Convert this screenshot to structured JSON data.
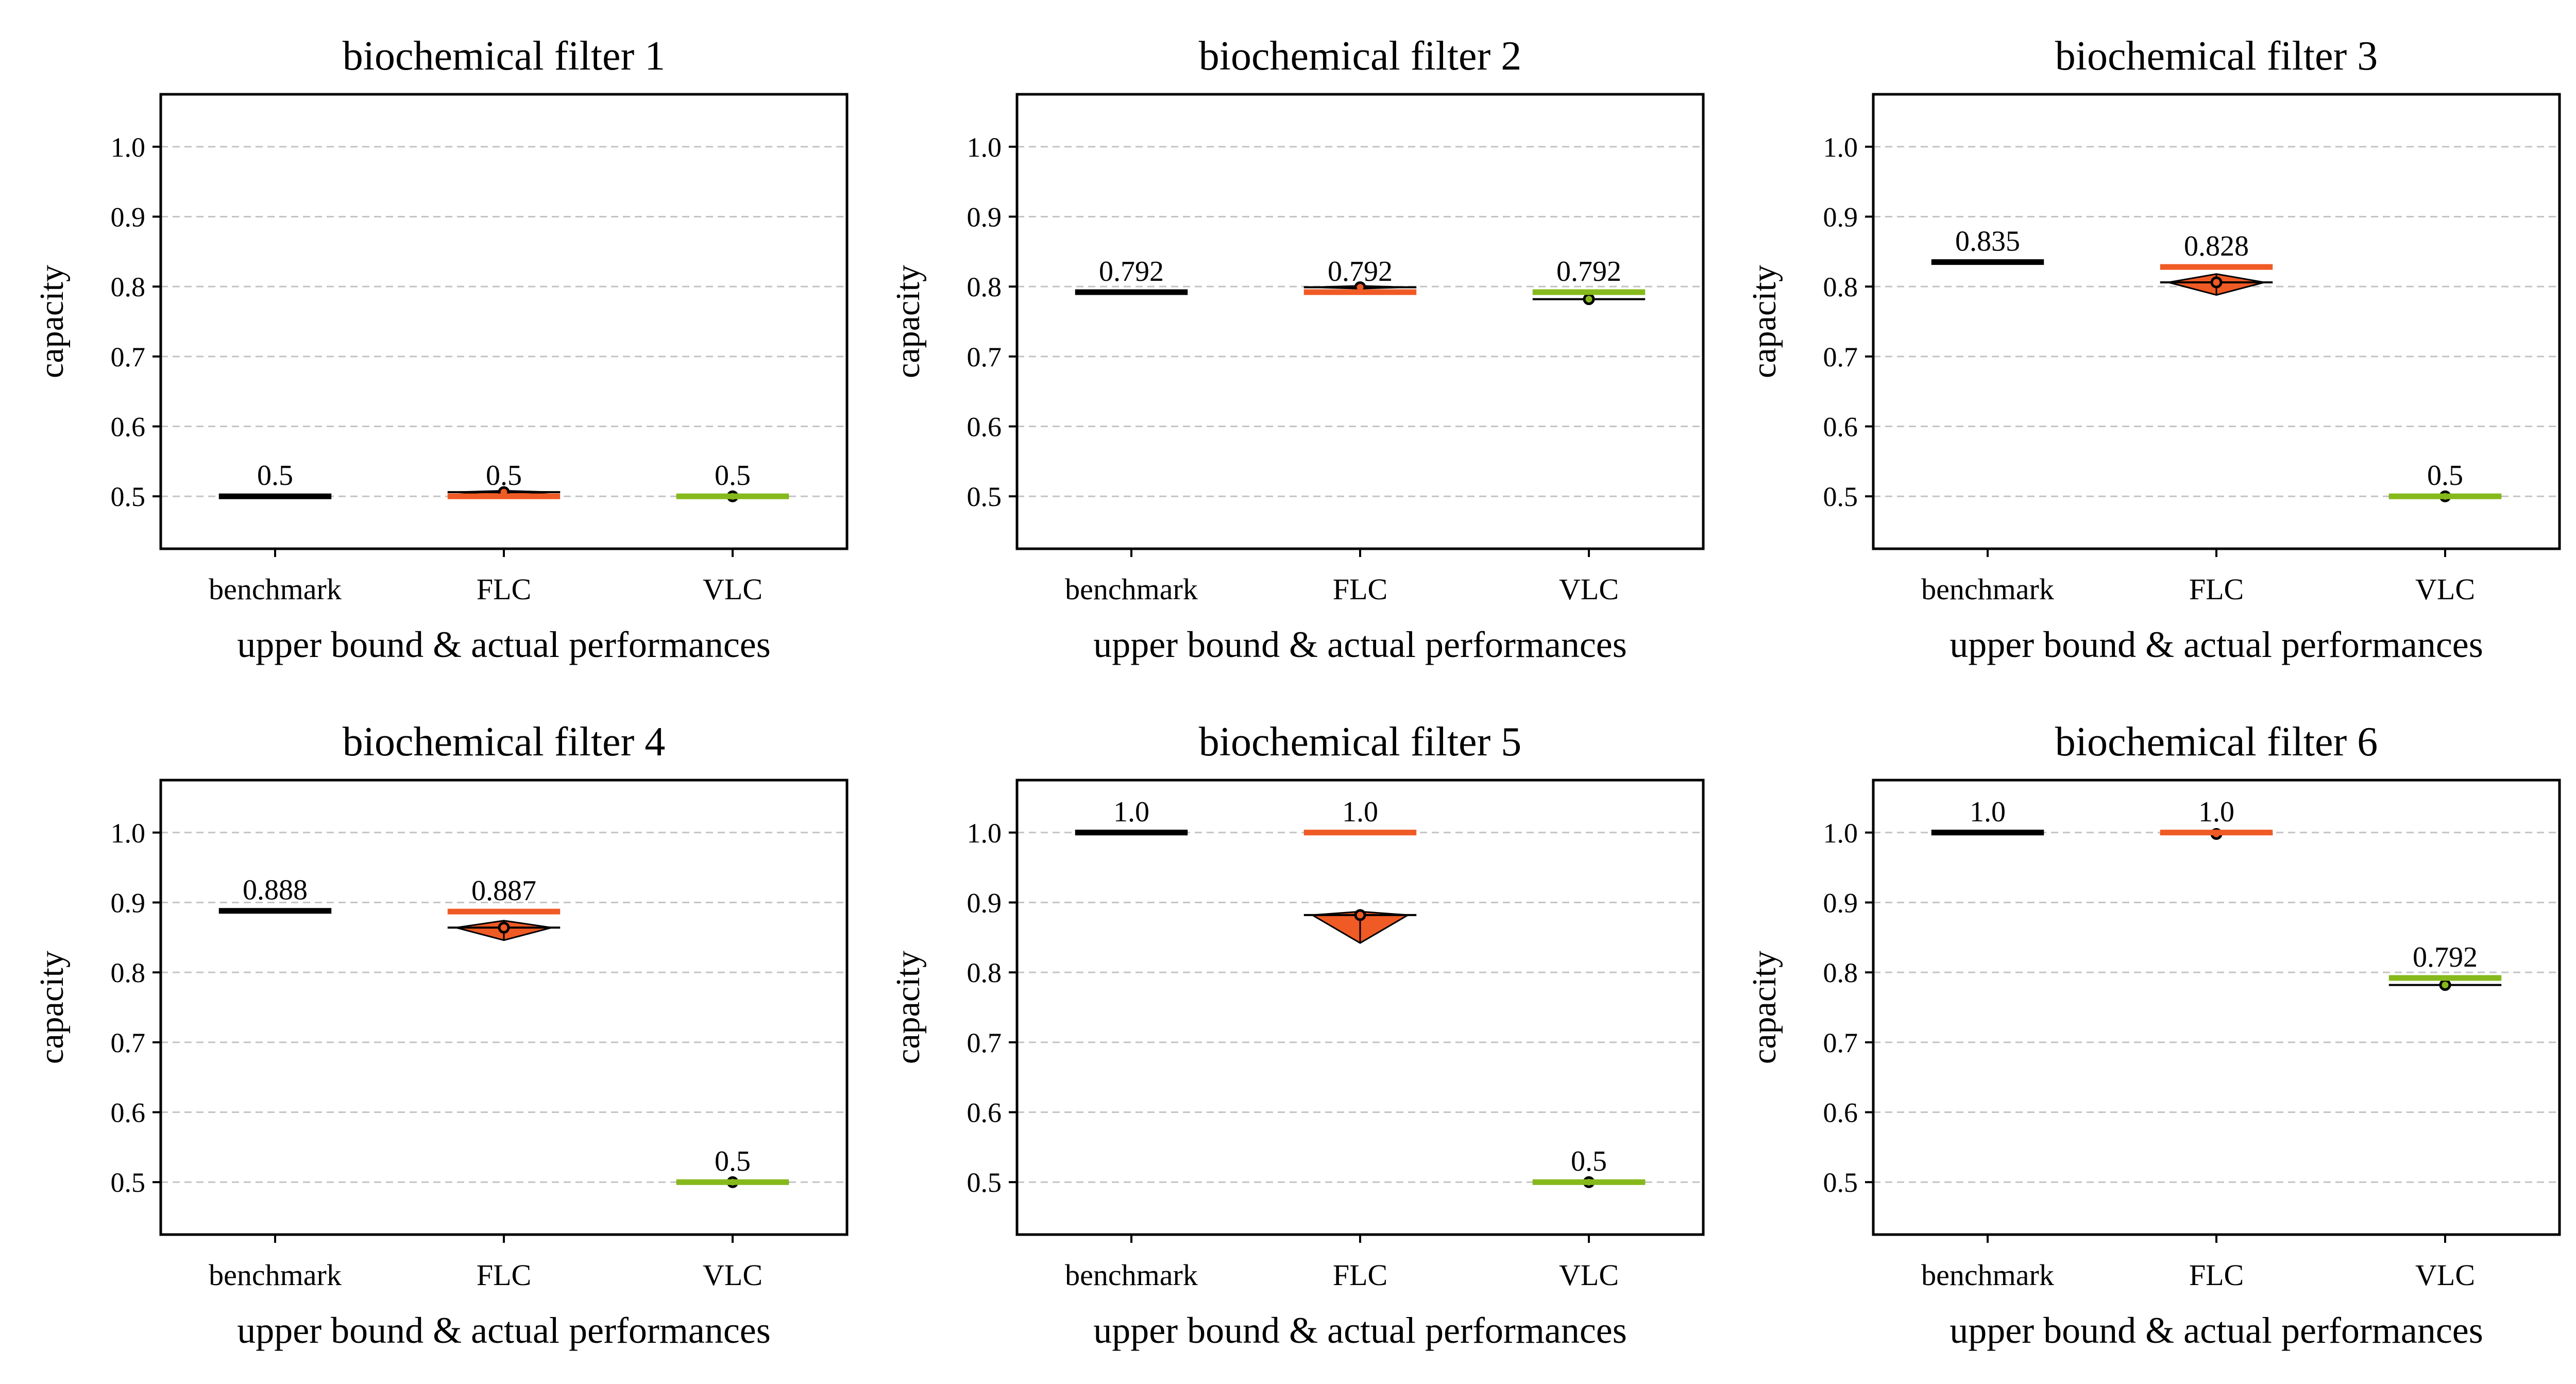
{
  "chart_data": [
    {
      "type": "box",
      "title": "biochemical filter 1",
      "xlabel": "upper bound & actual performances",
      "ylabel": "capacity",
      "categories": [
        "benchmark",
        "FLC",
        "VLC"
      ],
      "ylim": [
        0.425,
        1.075
      ],
      "yticks": [
        "0.5",
        "0.6",
        "0.7",
        "0.8",
        "0.9",
        "1.0"
      ],
      "grid": true,
      "upper_bound": [
        0.5,
        0.5,
        0.5
      ],
      "upper_bound_labels": [
        "0.5",
        "0.5",
        "0.5"
      ],
      "actual": [
        null,
        {
          "mean": 0.506,
          "min": 0.5,
          "max": 0.508
        },
        {
          "mean": 0.5,
          "min": 0.5,
          "max": 0.5
        }
      ]
    },
    {
      "type": "box",
      "title": "biochemical filter 2",
      "xlabel": "upper bound & actual performances",
      "ylabel": "capacity",
      "categories": [
        "benchmark",
        "FLC",
        "VLC"
      ],
      "ylim": [
        0.425,
        1.075
      ],
      "yticks": [
        "0.5",
        "0.6",
        "0.7",
        "0.8",
        "0.9",
        "1.0"
      ],
      "grid": true,
      "upper_bound": [
        0.792,
        0.792,
        0.792
      ],
      "upper_bound_labels": [
        "0.792",
        "0.792",
        "0.792"
      ],
      "actual": [
        null,
        {
          "mean": 0.799,
          "min": 0.797,
          "max": 0.801
        },
        {
          "mean": 0.782,
          "min": 0.781,
          "max": 0.783
        }
      ]
    },
    {
      "type": "box",
      "title": "biochemical filter 3",
      "xlabel": "upper bound & actual performances",
      "ylabel": "capacity",
      "categories": [
        "benchmark",
        "FLC",
        "VLC"
      ],
      "ylim": [
        0.425,
        1.075
      ],
      "yticks": [
        "0.5",
        "0.6",
        "0.7",
        "0.8",
        "0.9",
        "1.0"
      ],
      "grid": true,
      "upper_bound": [
        0.835,
        0.828,
        0.5
      ],
      "upper_bound_labels": [
        "0.835",
        "0.828",
        "0.5"
      ],
      "actual": [
        null,
        {
          "mean": 0.806,
          "min": 0.788,
          "max": 0.818
        },
        {
          "mean": 0.5,
          "min": 0.5,
          "max": 0.5
        }
      ]
    },
    {
      "type": "box",
      "title": "biochemical filter 4",
      "xlabel": "upper bound & actual performances",
      "ylabel": "capacity",
      "categories": [
        "benchmark",
        "FLC",
        "VLC"
      ],
      "ylim": [
        0.425,
        1.075
      ],
      "yticks": [
        "0.5",
        "0.6",
        "0.7",
        "0.8",
        "0.9",
        "1.0"
      ],
      "grid": true,
      "upper_bound": [
        0.888,
        0.887,
        0.5
      ],
      "upper_bound_labels": [
        "0.888",
        "0.887",
        "0.5"
      ],
      "actual": [
        null,
        {
          "mean": 0.864,
          "min": 0.846,
          "max": 0.874
        },
        {
          "mean": 0.5,
          "min": 0.5,
          "max": 0.5
        }
      ]
    },
    {
      "type": "box",
      "title": "biochemical filter 5",
      "xlabel": "upper bound & actual performances",
      "ylabel": "capacity",
      "categories": [
        "benchmark",
        "FLC",
        "VLC"
      ],
      "ylim": [
        0.425,
        1.075
      ],
      "yticks": [
        "0.5",
        "0.6",
        "0.7",
        "0.8",
        "0.9",
        "1.0"
      ],
      "grid": true,
      "upper_bound": [
        1.0,
        1.0,
        0.5
      ],
      "upper_bound_labels": [
        "1.0",
        "1.0",
        "0.5"
      ],
      "actual": [
        null,
        {
          "mean": 0.882,
          "min": 0.842,
          "max": 0.887
        },
        {
          "mean": 0.5,
          "min": 0.5,
          "max": 0.5
        }
      ]
    },
    {
      "type": "box",
      "title": "biochemical filter 6",
      "xlabel": "upper bound & actual performances",
      "ylabel": "capacity",
      "categories": [
        "benchmark",
        "FLC",
        "VLC"
      ],
      "ylim": [
        0.425,
        1.075
      ],
      "yticks": [
        "0.5",
        "0.6",
        "0.7",
        "0.8",
        "0.9",
        "1.0"
      ],
      "grid": true,
      "upper_bound": [
        1.0,
        1.0,
        0.792
      ],
      "upper_bound_labels": [
        "1.0",
        "1.0",
        "0.792"
      ],
      "actual": [
        null,
        {
          "mean": 0.998,
          "min": 0.997,
          "max": 0.999
        },
        {
          "mean": 0.782,
          "min": 0.781,
          "max": 0.783
        }
      ]
    }
  ],
  "colors": {
    "benchmark": "#000000",
    "FLC": "#f05a24",
    "VLC": "#86b91c",
    "grid": "#c4c4c4"
  }
}
